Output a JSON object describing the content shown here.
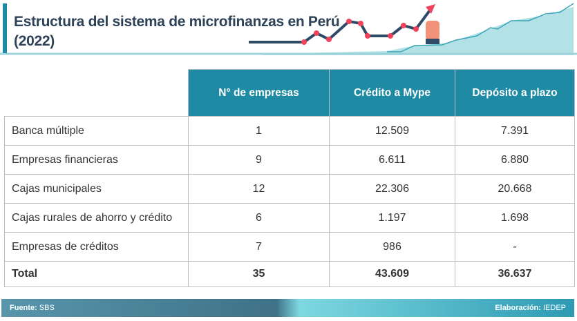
{
  "header": {
    "title_line1": "Estructura del sistema de microfinanzas en Perú",
    "title_line2": "(2022)"
  },
  "table": {
    "columns": [
      "N° de empresas",
      "Crédito a Mype",
      "Depósito a plazo"
    ],
    "rows": [
      {
        "label": "Banca múltiple",
        "values": [
          "1",
          "12.509",
          "7.391"
        ]
      },
      {
        "label": "Empresas financieras",
        "values": [
          "9",
          "6.611",
          "6.880"
        ]
      },
      {
        "label": "Cajas municipales",
        "values": [
          "12",
          "22.306",
          "20.668"
        ]
      },
      {
        "label": "Cajas rurales de ahorro y crédito",
        "values": [
          "6",
          "1.197",
          "1.698"
        ]
      },
      {
        "label": "Empresas de créditos",
        "values": [
          "7",
          "986",
          "-"
        ]
      }
    ],
    "total": {
      "label": "Total",
      "values": [
        "35",
        "43.609",
        "36.637"
      ]
    }
  },
  "footer": {
    "source_label": "Fuente:",
    "source": "SBS",
    "credit_label": "Elaboración:",
    "credit": "IEDEP"
  },
  "colors": {
    "header": "#1f8aa3",
    "title": "#2e4258",
    "accent_red": "#f0425a"
  }
}
